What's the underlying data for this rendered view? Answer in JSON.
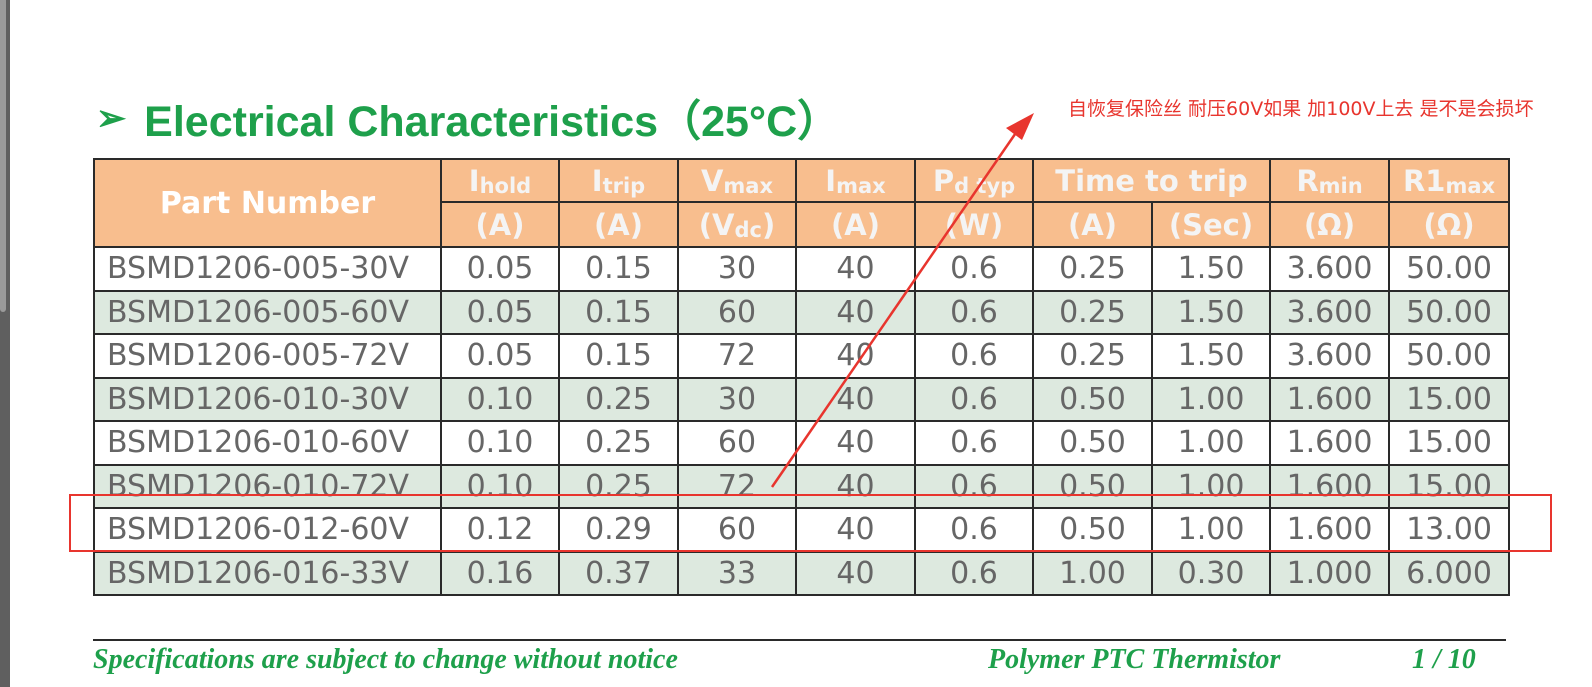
{
  "title": {
    "arrow": "➢",
    "text": "Electrical Characteristics（25°C）"
  },
  "table": {
    "header_row1": {
      "part_number": "Part Number",
      "ihold": {
        "main": "I",
        "sub": "hold"
      },
      "itrip": {
        "main": "I",
        "sub": "trip"
      },
      "vmax": {
        "main": "V",
        "sub": "max"
      },
      "imax": {
        "main": "I",
        "sub": "max"
      },
      "pd": {
        "main": "P",
        "sub": "d typ"
      },
      "time_to_trip": "Time to trip",
      "rmin": {
        "main": "R",
        "sub": "min"
      },
      "r1max": {
        "main": "R1",
        "sub": "max"
      }
    },
    "header_units": {
      "ihold": "(A)",
      "itrip": "(A)",
      "vmax": {
        "pre": "(V",
        "sub": "dc",
        "post": ")"
      },
      "imax": "(A)",
      "pd": "(W)",
      "ttt_current": "(A)",
      "ttt_time": "(Sec)",
      "rmin": "(Ω)",
      "r1max": "(Ω)"
    },
    "rows": [
      [
        "BSMD1206-005-30V",
        "0.05",
        "0.15",
        "30",
        "40",
        "0.6",
        "0.25",
        "1.50",
        "3.600",
        "50.00"
      ],
      [
        "BSMD1206-005-60V",
        "0.05",
        "0.15",
        "60",
        "40",
        "0.6",
        "0.25",
        "1.50",
        "3.600",
        "50.00"
      ],
      [
        "BSMD1206-005-72V",
        "0.05",
        "0.15",
        "72",
        "40",
        "0.6",
        "0.25",
        "1.50",
        "3.600",
        "50.00"
      ],
      [
        "BSMD1206-010-30V",
        "0.10",
        "0.25",
        "30",
        "40",
        "0.6",
        "0.50",
        "1.00",
        "1.600",
        "15.00"
      ],
      [
        "BSMD1206-010-60V",
        "0.10",
        "0.25",
        "60",
        "40",
        "0.6",
        "0.50",
        "1.00",
        "1.600",
        "15.00"
      ],
      [
        "BSMD1206-010-72V",
        "0.10",
        "0.25",
        "72",
        "40",
        "0.6",
        "0.50",
        "1.00",
        "1.600",
        "15.00"
      ],
      [
        "BSMD1206-012-60V",
        "0.12",
        "0.29",
        "60",
        "40",
        "0.6",
        "0.50",
        "1.00",
        "1.600",
        "13.00"
      ],
      [
        "BSMD1206-016-33V",
        "0.16",
        "0.37",
        "33",
        "40",
        "0.6",
        "1.00",
        "0.30",
        "1.000",
        "6.000"
      ]
    ]
  },
  "annotation": {
    "text": "自恢复保险丝 耐压60V如果 加100V上去  是不是会损坏",
    "color": "#e8352e"
  },
  "footer": {
    "left": "Specifications are subject to change without notice",
    "middle": "Polymer PTC Thermistor",
    "page": "1 / 10"
  },
  "colors": {
    "title_green": "#1ea04b",
    "header_orange": "#f8be8e",
    "row_alt": "#dde9df",
    "annotation_red": "#e8352e"
  }
}
